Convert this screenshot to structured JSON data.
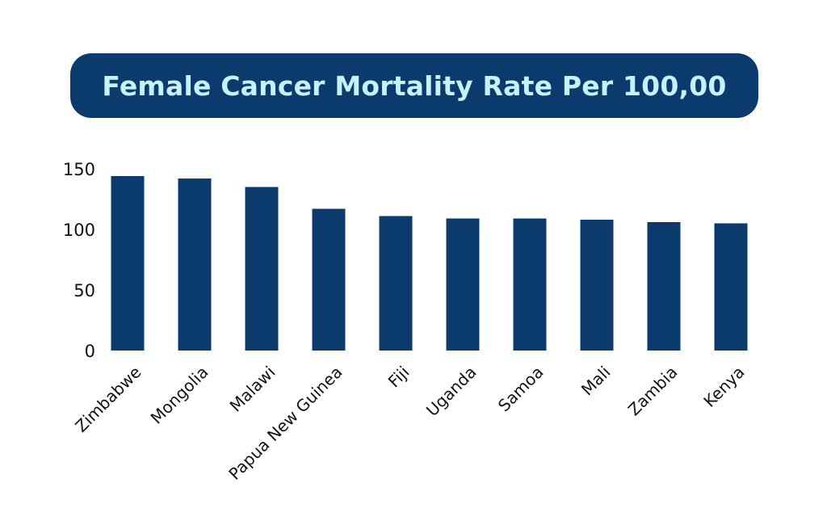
{
  "chart_data": {
    "type": "bar",
    "title": "Female Cancer Mortality Rate Per 100,00",
    "xlabel": "",
    "ylabel": "",
    "categories": [
      "Zimbabwe",
      "Mongolia",
      "Malawi",
      "Papua New Guinea",
      "Fiji",
      "Uganda",
      "Samoa",
      "Mali",
      "Zambia",
      "Kenya"
    ],
    "values": [
      144,
      142,
      135,
      117,
      111,
      109,
      109,
      108,
      106,
      105
    ],
    "ylim": [
      0,
      150
    ],
    "yticks": [
      0,
      50,
      100,
      150
    ],
    "grid": false,
    "bar_color": "#0b3b6d"
  },
  "colors": {
    "banner": "#0b3b6d",
    "title_text": "#c6f1ff",
    "bar": "#0b3b6d"
  }
}
